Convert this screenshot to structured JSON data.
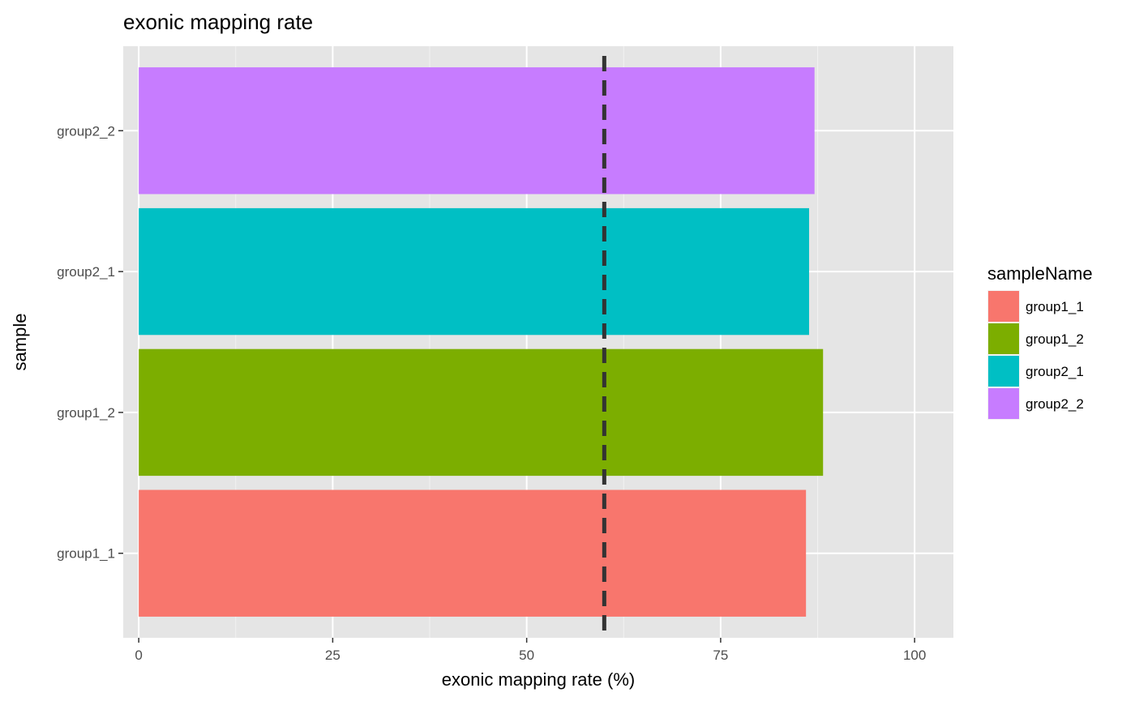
{
  "chart_data": {
    "type": "bar",
    "orientation": "horizontal",
    "title": "exonic mapping rate",
    "xlabel": "exonic mapping rate (%)",
    "ylabel": "sample",
    "categories": [
      "group1_1",
      "group1_2",
      "group2_1",
      "group2_2"
    ],
    "values": [
      86.0,
      88.2,
      86.4,
      87.1
    ],
    "colors": [
      "#F8766D",
      "#7CAE00",
      "#00BFC4",
      "#C77CFF"
    ],
    "xlim": [
      -2,
      105
    ],
    "xticks": [
      0,
      25,
      50,
      75,
      100
    ],
    "xtick_labels": [
      "0",
      "25",
      "50",
      "75",
      "100"
    ],
    "reference_line": {
      "x": 60,
      "style": "dashed",
      "color": "#333333"
    },
    "grid": true,
    "panel_background": "#E5E5E5",
    "legend": {
      "title": "sampleName",
      "position": "right",
      "entries": [
        "group1_1",
        "group1_2",
        "group2_1",
        "group2_2"
      ]
    }
  }
}
